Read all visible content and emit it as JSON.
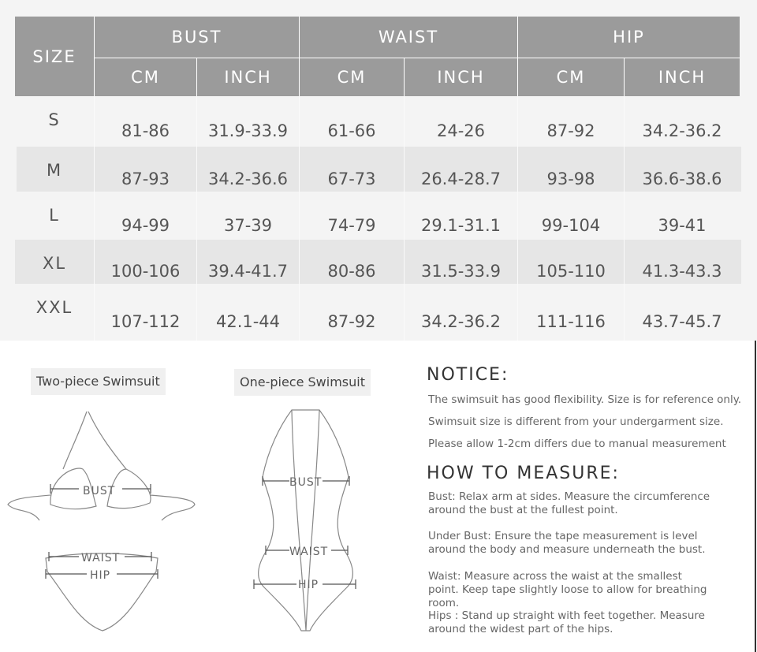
{
  "table": {
    "size_header": "SIZE",
    "groups": [
      "BUST",
      "WAIST",
      "HIP"
    ],
    "units": [
      "CM",
      "INCH",
      "CM",
      "INCH",
      "CM",
      "INCH"
    ],
    "rows": [
      {
        "size": "S",
        "values": [
          "81-86",
          "31.9-33.9",
          "61-66",
          "24-26",
          "87-92",
          "34.2-36.2"
        ]
      },
      {
        "size": "M",
        "values": [
          "87-93",
          "34.2-36.6",
          "67-73",
          "26.4-28.7",
          "93-98",
          "36.6-38.6"
        ]
      },
      {
        "size": "L",
        "values": [
          "94-99",
          "37-39",
          "74-79",
          "29.1-31.1",
          "99-104",
          "39-41"
        ]
      },
      {
        "size": "XL",
        "values": [
          "100-106",
          "39.4-41.7",
          "80-86",
          "31.5-33.9",
          "105-110",
          "41.3-43.3"
        ]
      },
      {
        "size": "XXL",
        "values": [
          "107-112",
          "42.1-44",
          "87-92",
          "34.2-36.2",
          "111-116",
          "43.7-45.7"
        ]
      }
    ]
  },
  "diagrams": {
    "two_piece": {
      "title": "Two-piece Swimsuit",
      "bust": "BUST",
      "waist": "WAIST",
      "hip": "HIP"
    },
    "one_piece": {
      "title": "One-piece Swimsuit",
      "bust": "BUST",
      "waist": "WAIST",
      "hip": "HIP"
    }
  },
  "notice": {
    "title": "NOTICE:",
    "lines": [
      "The swimsuit has good flexibility. Size is for reference only.",
      "Swimsuit size is different from your undergarment size.",
      "Please allow 1-2cm differs due to manual measurement"
    ]
  },
  "how_to_measure": {
    "title": "HOW TO MEASURE:",
    "items": [
      "Bust: Relax arm at sides. Measure the circumference around the bust at the fullest point.",
      "Under Bust: Ensure the tape measurement is level around the body and measure underneath the bust.",
      "Waist: Measure across the waist at the smallest point. Keep tape slightly loose to allow for breathing room.",
      "Hips : Stand up straight with feet together. Measure around the widest part of the hips."
    ]
  }
}
